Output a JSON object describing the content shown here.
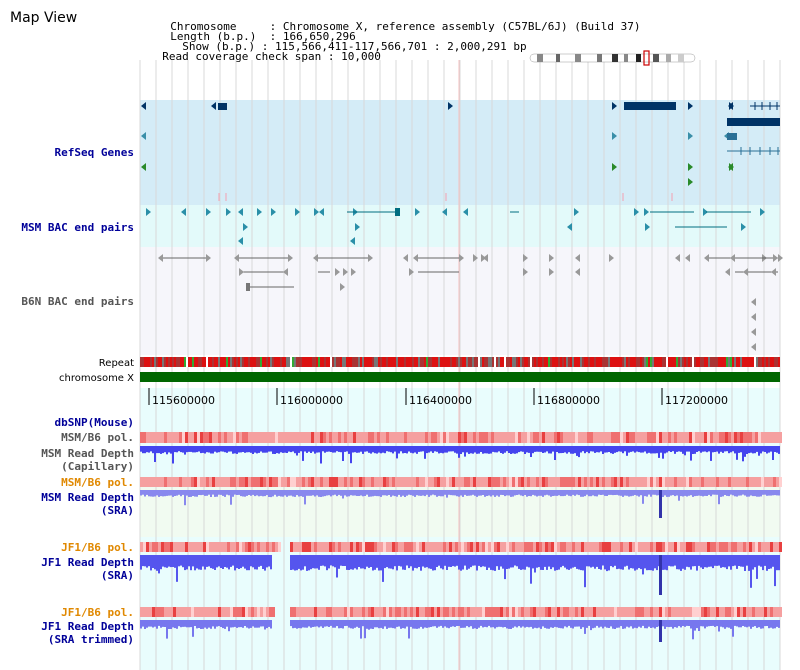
{
  "title": "Map View",
  "info": {
    "chromosome_label": "Chromosome",
    "chromosome_value": "Chromosome X, reference assembly (C57BL/6J) (Build 37)",
    "length_label": "Length (b.p.)",
    "length_value": "166,650,296",
    "show_label": "Show (b.p.)",
    "show_value": "115,566,411-117,566,701 : 2,000,291 bp",
    "coverage_label": "Read coverage check span",
    "coverage_value": "10,000",
    "sep": ":"
  },
  "tracks": {
    "refseq": "RefSeq Genes",
    "msm_bac": "MSM BAC end pairs",
    "b6n_bac": "B6N BAC end pairs",
    "repeat": "Repeat",
    "chromosome": "chromosome X",
    "dbsnp": "dbSNP(Mouse)",
    "msm_pol": "MSM/B6 pol.",
    "msm_depth_cap_1": "MSM Read Depth",
    "msm_depth_cap_2": "(Capillary)",
    "msm_pol2": "MSM/B6 pol.",
    "msm_depth_sra_1": "MSM Read Depth",
    "msm_depth_sra_2": "(SRA)",
    "jf1_pol": "JF1/B6 pol.",
    "jf1_depth_sra_1": "JF1 Read Depth",
    "jf1_depth_sra_2": "(SRA)",
    "jf1_pol2": "JF1/B6 pol.",
    "jf1_depth_trim_1": "JF1 Read Depth",
    "jf1_depth_trim_2": "(SRA trimmed)"
  },
  "ruler": {
    "ticks": [
      "115600000",
      "116000000",
      "116400000",
      "116800000",
      "117200000"
    ]
  },
  "colors": {
    "link_blue": "#000099",
    "orange": "#e08800",
    "gray_label": "#555555",
    "gene_dark": "#003366",
    "bac_teal": "#006d80",
    "depth_blue": "#3333ff",
    "chrom_green": "#006600"
  }
}
